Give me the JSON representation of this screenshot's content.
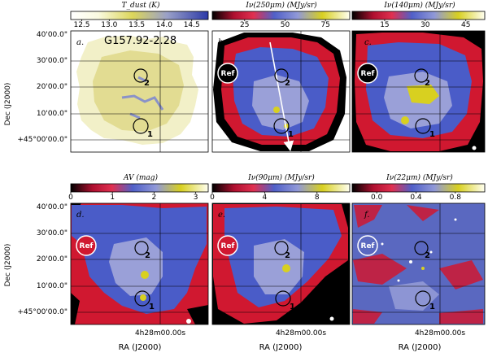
{
  "chart_data": {
    "type": "image-grid",
    "layout": "2 rows x 3 columns of sky maps with colorbars",
    "y_axis": {
      "label": "Dec (J2000)",
      "ticks": [
        "40'00.0\"",
        "30'00.0\"",
        "20'00.0\"",
        "10'00.0\"",
        "+45°00'00.0\""
      ]
    },
    "x_axis": {
      "label": "RA (J2000)",
      "ticks": [
        "4h28m00.00s"
      ]
    },
    "panels": [
      {
        "id": "a",
        "letter": "a.",
        "quantity": "T_dust (K)",
        "colorbar_title": "T_dust (K)",
        "colorbar_ticks": [
          "12.5",
          "13.0",
          "13.5",
          "14.0",
          "14.5"
        ],
        "colorbar_range": [
          12.3,
          14.8
        ],
        "colormap": "white-yellow-blue",
        "region_name": "G157.92-2.28",
        "markers": [
          {
            "label": "2"
          },
          {
            "label": "1"
          }
        ],
        "ref_marker": false,
        "arrow": false
      },
      {
        "id": "b",
        "letter": "b.",
        "quantity": "I_v(250 μm) (MJy/sr)",
        "colorbar_title": "Iν(250μm) (MJy/sr)",
        "colorbar_ticks": [
          "25",
          "50",
          "75"
        ],
        "colorbar_range": [
          5,
          90
        ],
        "colormap": "black-red-blue-yellow-white",
        "markers": [
          {
            "label": "2"
          },
          {
            "label": "1"
          }
        ],
        "ref_marker": true,
        "ref_label": "Ref",
        "arrow": true
      },
      {
        "id": "c",
        "letter": "c.",
        "quantity": "I_v(140 μm) (MJy/sr)",
        "colorbar_title": "Iν(140μm) (MJy/sr)",
        "colorbar_ticks": [
          "15",
          "30",
          "45"
        ],
        "colorbar_range": [
          3,
          52
        ],
        "colormap": "black-red-blue-yellow-white",
        "markers": [
          {
            "label": "2"
          },
          {
            "label": "1"
          }
        ],
        "ref_marker": true,
        "ref_label": "Ref",
        "arrow": false
      },
      {
        "id": "d",
        "letter": "d.",
        "quantity": "A_V (mag)",
        "colorbar_title": "AV (mag)",
        "colorbar_ticks": [
          "0",
          "1",
          "2",
          "3"
        ],
        "colorbar_range": [
          0,
          3.3
        ],
        "colormap": "black-red-blue-yellow-white",
        "markers": [
          {
            "label": "2"
          },
          {
            "label": "1"
          }
        ],
        "ref_marker": true,
        "ref_label": "Ref",
        "arrow": false
      },
      {
        "id": "e",
        "letter": "e.",
        "quantity": "I_v(90 μm) (MJy/sr)",
        "colorbar_title": "Iν(90μm) (MJy/sr)",
        "colorbar_ticks": [
          "0",
          "4",
          "8"
        ],
        "colorbar_range": [
          0,
          10.5
        ],
        "colormap": "black-red-blue-yellow-white",
        "markers": [
          {
            "label": "2"
          },
          {
            "label": "1"
          }
        ],
        "ref_marker": true,
        "ref_label": "Ref",
        "arrow": false
      },
      {
        "id": "f",
        "letter": "f.",
        "quantity": "I_v(22 μm) (MJy/sr)",
        "colorbar_title": "Iν(22μm) (MJy/sr)",
        "colorbar_ticks": [
          "0.0",
          "0.4",
          "0.8"
        ],
        "colorbar_range": [
          -0.25,
          1.1
        ],
        "colormap": "black-red-blue-yellow-white",
        "markers": [
          {
            "label": "2"
          },
          {
            "label": "1"
          }
        ],
        "ref_marker": true,
        "ref_label": "Ref",
        "arrow": false
      }
    ],
    "colors": {
      "black": "#000000",
      "red": "#d01830",
      "blue": "#4a5cc8",
      "lavender": "#9aa0d8",
      "yellow": "#d8d020",
      "cream": "#fcfce8",
      "white": "#ffffff"
    }
  }
}
